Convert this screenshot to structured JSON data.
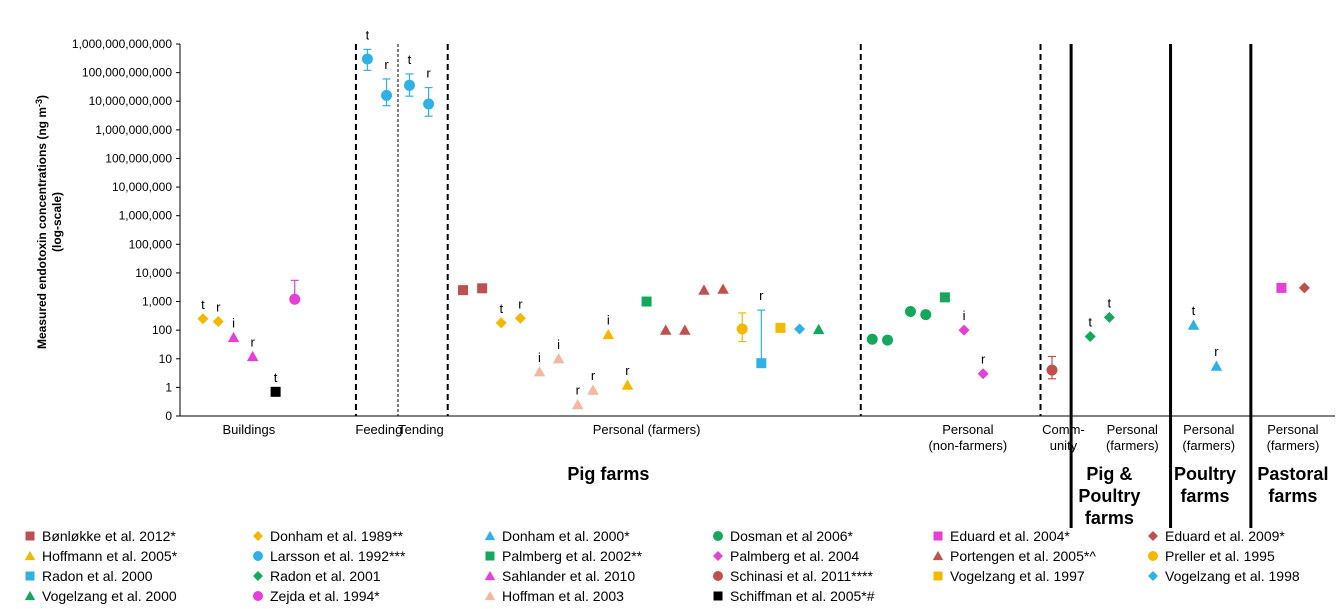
{
  "chart_data": {
    "type": "scatter",
    "ylabel_line1": "Measured endotoxin concentrations (ng m",
    "ylabel_sup": "-3",
    "ylabel_line1_end": ")",
    "ylabel_line2": "(log-scale)",
    "y_scale": "log",
    "ylim": [
      0.1,
      1000000000000
    ],
    "y_ticks": [
      {
        "v": 0.1,
        "label": "0"
      },
      {
        "v": 1,
        "label": "1"
      },
      {
        "v": 10,
        "label": "10"
      },
      {
        "v": 100,
        "label": "100"
      },
      {
        "v": 1000,
        "label": "1,000"
      },
      {
        "v": 10000,
        "label": "10,000"
      },
      {
        "v": 100000,
        "label": "100,000"
      },
      {
        "v": 1000000,
        "label": "1,000,000"
      },
      {
        "v": 10000000,
        "label": "10,000,000"
      },
      {
        "v": 100000000,
        "label": "100,000,000"
      },
      {
        "v": 1000000000,
        "label": "1,000,000,000"
      },
      {
        "v": 10000000000,
        "label": "10,000,000,000"
      },
      {
        "v": 100000000000,
        "label": "100,000,000,000"
      },
      {
        "v": 1000000000000,
        "label": "1,000,000,000,000"
      }
    ],
    "x_categories": [
      {
        "label": [
          "Buildings"
        ],
        "at": 8
      },
      {
        "label": [
          "Feeding"
        ],
        "at": 25
      },
      {
        "label": [
          "Tending"
        ],
        "at": 30.5
      },
      {
        "label": [
          "Personal (farmers)"
        ],
        "at": 60
      },
      {
        "label": [
          "Personal",
          "(non-farmers)"
        ],
        "at": 102
      },
      {
        "label": [
          "Comm-",
          "unity"
        ],
        "at": 114.5
      },
      {
        "label": [
          "Personal",
          "(farmers)"
        ],
        "at": 123.5
      },
      {
        "label": [
          "Personal",
          "(farmers)"
        ],
        "at": 133.5
      },
      {
        "label": [
          "Personal",
          "(farmers)"
        ],
        "at": 144.5
      }
    ],
    "x_range": [
      -1,
      150
    ],
    "separators": [
      {
        "x": 22,
        "style": "dashed"
      },
      {
        "x": 27.5,
        "style": "dotted"
      },
      {
        "x": 34,
        "style": "dashed"
      },
      {
        "x": 88,
        "style": "dashed"
      },
      {
        "x": 111.5,
        "style": "dashed"
      },
      {
        "x": 115.5,
        "style": "solid"
      },
      {
        "x": 128.5,
        "style": "solid"
      },
      {
        "x": 139,
        "style": "solid"
      }
    ],
    "groups": [
      {
        "label": [
          "Pig farms"
        ],
        "at": 55
      },
      {
        "label": [
          "Pig &",
          "Poultry",
          "farms"
        ],
        "at": 120.5
      },
      {
        "label": [
          "Poultry",
          "farms"
        ],
        "at": 133
      },
      {
        "label": [
          "Pastoral",
          "farms"
        ],
        "at": 144.5
      }
    ],
    "series": [
      {
        "name": "Bønløkke et al. 2012*",
        "shape": "square",
        "color": "#c0504d",
        "points": [
          {
            "x": 36,
            "y": 2500
          },
          {
            "x": 38.5,
            "y": 2900
          }
        ]
      },
      {
        "name": "Donham et al. 1989**",
        "shape": "diamond",
        "color": "#f5b800",
        "points": [
          {
            "x": 2,
            "y": 250,
            "label": "t"
          },
          {
            "x": 4,
            "y": 200,
            "label": "r"
          },
          {
            "x": 41,
            "y": 180,
            "label": "t"
          },
          {
            "x": 43.5,
            "y": 260,
            "label": "r"
          }
        ]
      },
      {
        "name": "Donham et al. 2000*",
        "shape": "triangle",
        "color": "#2eb2e6",
        "points": [
          {
            "x": 131.5,
            "y": 150,
            "label": "t"
          },
          {
            "x": 134.5,
            "y": 5.5,
            "label": "r"
          }
        ]
      },
      {
        "name": "Dosman et al 2006*",
        "shape": "circle",
        "color": "#13a85a",
        "points": [
          {
            "x": 89.5,
            "y": 48
          },
          {
            "x": 91.5,
            "y": 45
          },
          {
            "x": 94.5,
            "y": 450
          },
          {
            "x": 96.5,
            "y": 350
          }
        ]
      },
      {
        "name": "Eduard et al. 2004*",
        "shape": "square",
        "color": "#e83ed8",
        "points": [
          {
            "x": 143,
            "y": 3000
          }
        ]
      },
      {
        "name": "Eduard et al. 2009*",
        "shape": "diamond",
        "color": "#c0504d",
        "points": [
          {
            "x": 146,
            "y": 3000
          }
        ]
      },
      {
        "name": "Hoffmann et al. 2005*",
        "shape": "triangle",
        "color": "#f5b800",
        "points": [
          {
            "x": 55,
            "y": 70,
            "label": "i"
          },
          {
            "x": 57.5,
            "y": 1.2,
            "label": "r"
          }
        ]
      },
      {
        "name": "Larsson et al. 1992***",
        "shape": "circle",
        "color": "#2eb2e6",
        "points": [
          {
            "x": 23.5,
            "y": 300000000000,
            "label": "t",
            "lo": 120000000000,
            "hi": 650000000000
          },
          {
            "x": 26,
            "y": 16000000000,
            "label": "r",
            "lo": 7000000000,
            "hi": 60000000000
          },
          {
            "x": 29,
            "y": 36000000000,
            "label": "t",
            "lo": 15000000000,
            "hi": 90000000000
          },
          {
            "x": 31.5,
            "y": 8000000000,
            "label": "r",
            "lo": 3000000000,
            "hi": 30000000000
          }
        ]
      },
      {
        "name": "Palmberg et al. 2002**",
        "shape": "square",
        "color": "#13a85a",
        "points": [
          {
            "x": 60,
            "y": 1000
          },
          {
            "x": 99,
            "y": 1400
          }
        ]
      },
      {
        "name": "Palmberg et al. 2004",
        "shape": "diamond",
        "color": "#e83ed8",
        "points": [
          {
            "x": 101.5,
            "y": 100,
            "label": "i"
          },
          {
            "x": 104,
            "y": 3,
            "label": "r"
          }
        ]
      },
      {
        "name": "Portengen et al. 2005*^",
        "shape": "triangle",
        "color": "#c0504d",
        "points": [
          {
            "x": 62.5,
            "y": 100
          },
          {
            "x": 65,
            "y": 100
          },
          {
            "x": 67.5,
            "y": 2500
          },
          {
            "x": 70,
            "y": 2700
          }
        ]
      },
      {
        "name": "Preller et al. 1995",
        "shape": "circle",
        "color": "#f5b800",
        "points": [
          {
            "x": 72.5,
            "y": 110,
            "lo": 40,
            "hi": 400
          }
        ]
      },
      {
        "name": "Radon et al. 2000",
        "shape": "square",
        "color": "#2eb2e6",
        "points": [
          {
            "x": 75,
            "y": 7,
            "label": "r",
            "hi": 500
          }
        ]
      },
      {
        "name": "Radon et al. 2001",
        "shape": "diamond",
        "color": "#13a85a",
        "points": [
          {
            "x": 118,
            "y": 60,
            "label": "t"
          },
          {
            "x": 120.5,
            "y": 280,
            "label": "t"
          }
        ]
      },
      {
        "name": "Sahlander et al. 2010",
        "shape": "triangle",
        "color": "#e83ed8",
        "points": [
          {
            "x": 6,
            "y": 55,
            "label": "i"
          },
          {
            "x": 8.5,
            "y": 12,
            "label": "r"
          }
        ]
      },
      {
        "name": "Schinasi et al. 2011****",
        "shape": "circle",
        "color": "#c0504d",
        "points": [
          {
            "x": 113,
            "y": 4,
            "lo": 2,
            "hi": 12
          }
        ]
      },
      {
        "name": "Vogelzang et al. 1997",
        "shape": "square",
        "color": "#f5b800",
        "points": [
          {
            "x": 77.5,
            "y": 120
          }
        ]
      },
      {
        "name": "Vogelzang et al. 1998",
        "shape": "diamond",
        "color": "#2eb2e6",
        "points": [
          {
            "x": 80,
            "y": 110
          }
        ]
      },
      {
        "name": "Vogelzang et al. 2000",
        "shape": "triangle",
        "color": "#13a85a",
        "points": [
          {
            "x": 82.5,
            "y": 105
          }
        ]
      },
      {
        "name": "Zejda et al. 1994*",
        "shape": "circle",
        "color": "#e83ed8",
        "points": [
          {
            "x": 14,
            "y": 1200,
            "hi": 5500
          }
        ]
      },
      {
        "name": "Hoffman et al. 2003",
        "shape": "triangle",
        "color": "#f2b8a2",
        "points": [
          {
            "x": 46,
            "y": 3.5,
            "label": "i"
          },
          {
            "x": 48.5,
            "y": 10,
            "label": "i"
          },
          {
            "x": 51,
            "y": 0.25,
            "label": "r"
          },
          {
            "x": 53,
            "y": 0.8,
            "label": "r"
          }
        ]
      },
      {
        "name": "Schiffman et al. 2005*#",
        "shape": "square",
        "color": "#000000",
        "points": [
          {
            "x": 11.5,
            "y": 0.7,
            "label": "t"
          }
        ]
      }
    ]
  }
}
